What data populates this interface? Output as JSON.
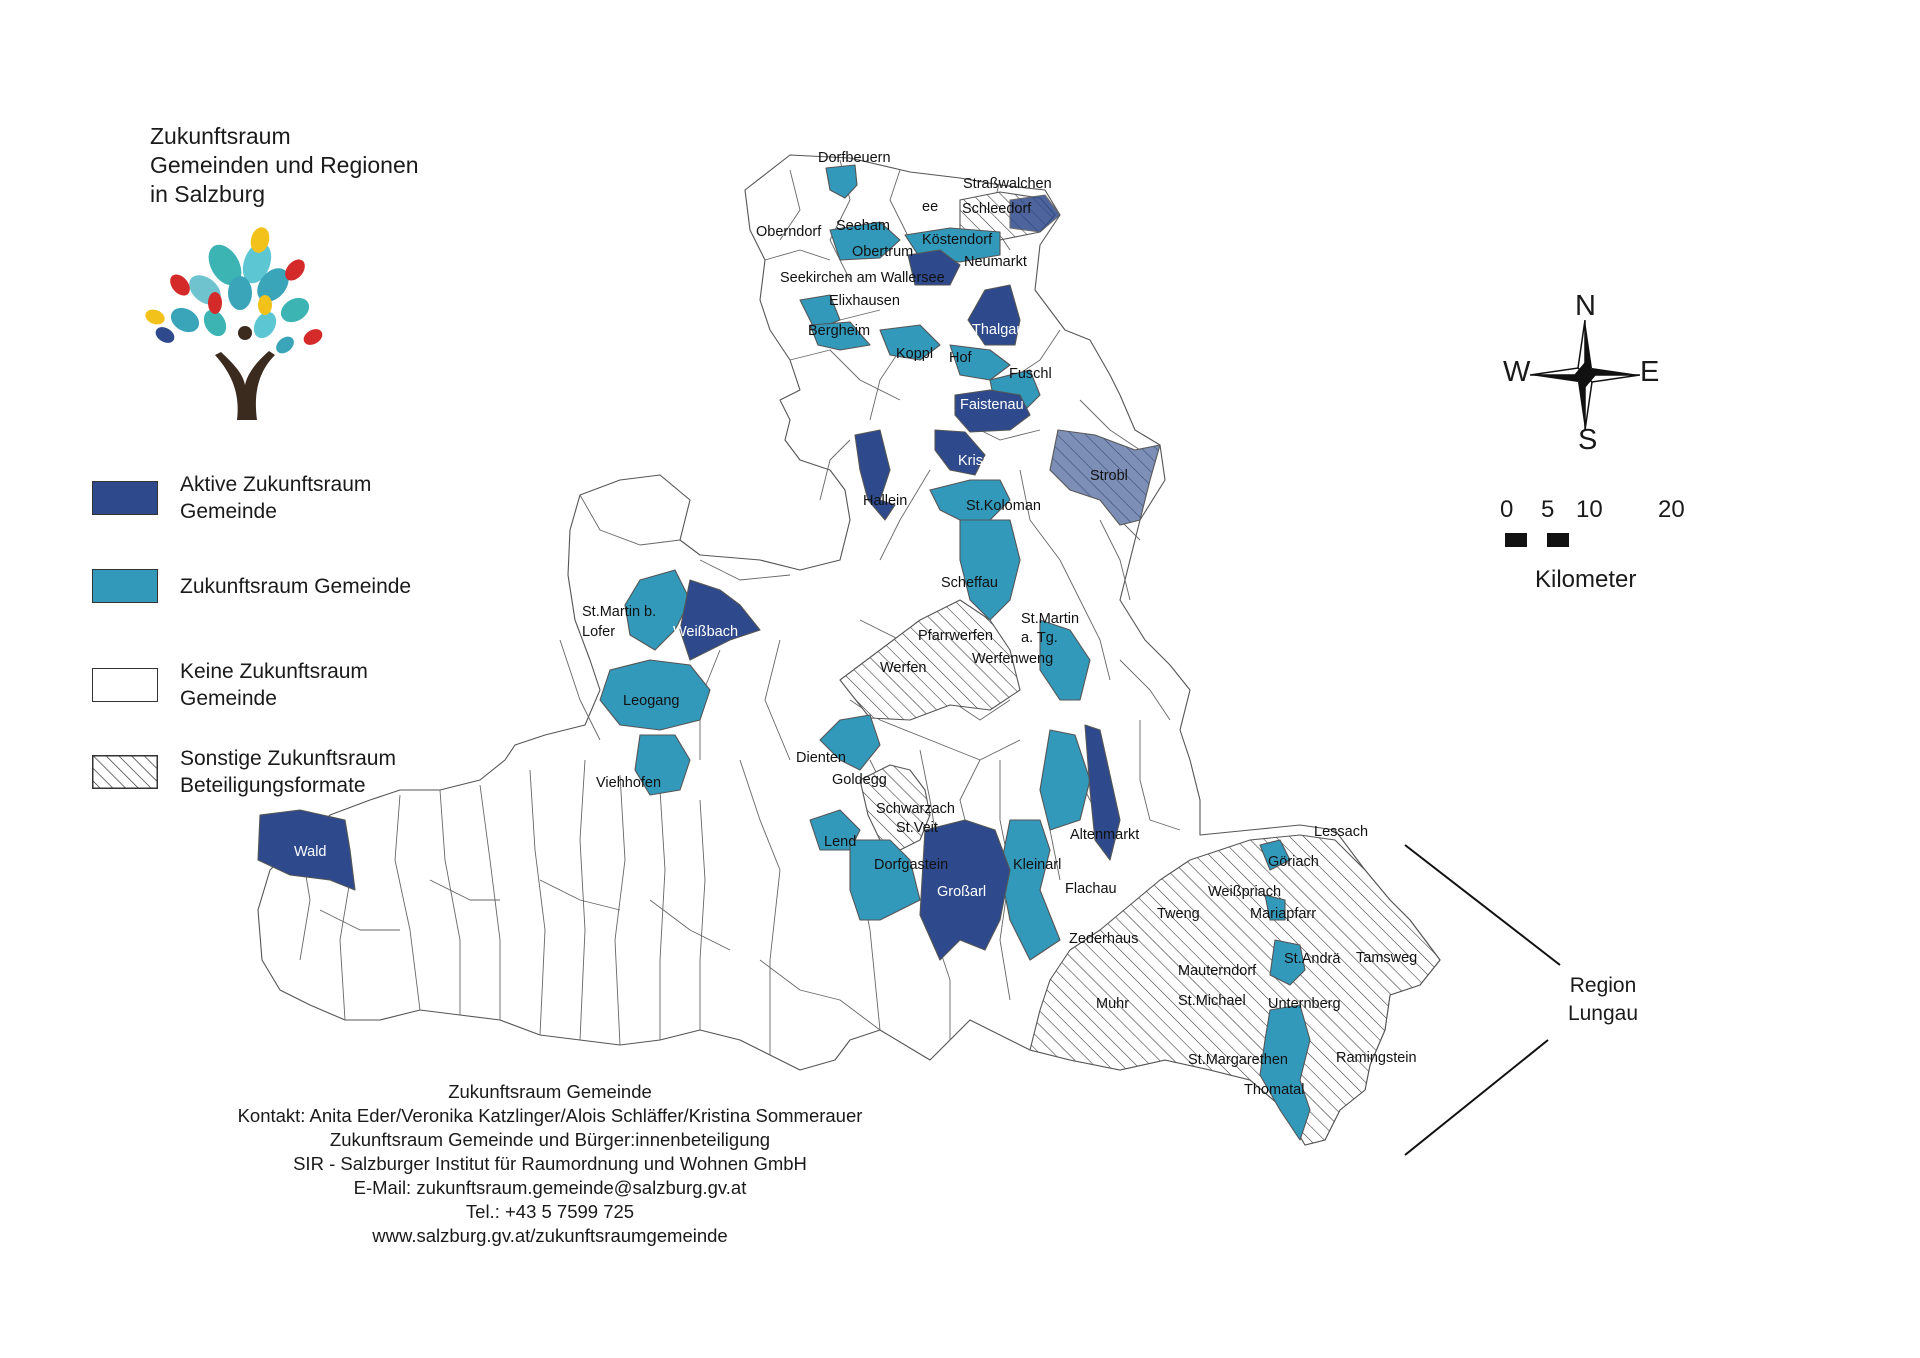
{
  "title": {
    "line1": "Zukunftsraum",
    "line2": "Gemeinden und Regionen",
    "line3": "in Salzburg"
  },
  "logo": {
    "icon": "tree-of-hands-logo"
  },
  "legend": {
    "items": [
      {
        "line1": "Aktive Zukunftsraum",
        "line2": "Gemeinde",
        "color": "#2e4a8c",
        "pattern": "solid"
      },
      {
        "line1": "Zukunftsraum Gemeinde",
        "line2": "",
        "color": "#3399bb",
        "pattern": "solid"
      },
      {
        "line1": "Keine Zukunftsraum",
        "line2": "Gemeinde",
        "color": "#ffffff",
        "pattern": "solid"
      },
      {
        "line1": "Sonstige Zukunftsraum",
        "line2": "Beteiligungsformate",
        "color": "#ffffff",
        "pattern": "hatched"
      }
    ]
  },
  "compass": {
    "n": "N",
    "e": "E",
    "s": "S",
    "w": "W",
    "icon": "compass-rose-icon"
  },
  "scale": {
    "ticks": [
      "0",
      "5",
      "10",
      "20"
    ],
    "unit": "Kilometer"
  },
  "region_lungau": {
    "line1": "Region",
    "line2": "Lungau"
  },
  "municipalities": {
    "dorfbeuern": "Dorfbeuern",
    "strasswalchen": "Straßwalchen",
    "schleedorf": "Schleedorf",
    "oberndorf": "Oberndorf",
    "seeham": "Seeham",
    "see": "ee",
    "koestendorf": "Köstendorf",
    "obertrum": "Obertrum",
    "neumarkt": "Neumarkt",
    "seekirchen": "Seekirchen am Wallersee",
    "elixhausen": "Elixhausen",
    "thalgau": "Thalgau",
    "bergheim": "Bergheim",
    "koppl": "Koppl",
    "hof": "Hof",
    "fuschl": "Fuschl",
    "faistenau": "Faistenau",
    "krispl": "Krispl",
    "strobl": "Strobl",
    "hallein": "Hallein",
    "stkoloman": "St.Koloman",
    "scheffau": "Scheffau",
    "stmartinlofer_1": "St.Martin b.",
    "stmartinlofer_2": "Lofer",
    "weissbach": "Weißbach",
    "pfarrwerfen": "Pfarrwerfen",
    "stmartintg_1": "St.Martin",
    "stmartintg_2": "a. Tg.",
    "werfen": "Werfen",
    "werfenweng": "Werfenweng",
    "leogang": "Leogang",
    "dienten": "Dienten",
    "goldegg": "Goldegg",
    "viehhofen": "Viehhofen",
    "schwarzach": "Schwarzach",
    "stveit": "St.Veit",
    "wald": "Wald",
    "lend": "Lend",
    "altenmarkt": "Altenmarkt",
    "lessach": "Lessach",
    "dorfgastein": "Dorfgastein",
    "grossarl": "Großarl",
    "kleinarl": "Kleinarl",
    "goeriach": "Göriach",
    "flachau": "Flachau",
    "weisspriach": "Weißpriach",
    "tweng": "Tweng",
    "mariapfarr": "Mariapfarr",
    "zederhaus": "Zederhaus",
    "standrae": "St.Andrä",
    "tamsweg": "Tamsweg",
    "mauterndorf": "Mauterndorf",
    "muhr": "Muhr",
    "stmichael": "St.Michael",
    "unternberg": "Unternberg",
    "stmargarethen": "St.Margarethen",
    "ramingstein": "Ramingstein",
    "thomatal": "Thomatal"
  },
  "contact": {
    "line1": "Zukunftsraum Gemeinde",
    "line2": "Kontakt: Anita Eder/Veronika Katzlinger/Alois Schläffer/Kristina Sommerauer",
    "line3": "Zukunftsraum Gemeinde und Bürger:innenbeteiligung",
    "line4": "SIR - Salzburger Institut für Raumordnung und Wohnen GmbH",
    "line5": "E-Mail: zukunftsraum.gemeinde@salzburg.gv.at",
    "line6": "Tel.: +43 5 7599 725",
    "line7": "www.salzburg.gv.at/zukunftsraumgemeinde"
  }
}
